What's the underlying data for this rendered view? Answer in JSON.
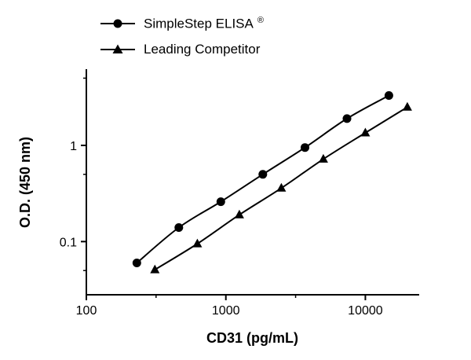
{
  "figure": {
    "background_color": "#ffffff",
    "line_color": "#000000",
    "text_color": "#000000"
  },
  "chart_data": {
    "type": "line",
    "title": "",
    "xlabel": "CD31 (pg/mL)",
    "ylabel": "O.D. (450 nm)",
    "x_scale": "log",
    "y_scale": "log",
    "xlim": [
      100,
      24000
    ],
    "ylim": [
      0.028,
      6.2
    ],
    "grid": false,
    "legend_position": "top-left",
    "x_ticks": [
      {
        "value": 100,
        "label": "100"
      },
      {
        "value": 1000,
        "label": "1000"
      },
      {
        "value": 10000,
        "label": "10000"
      }
    ],
    "x_minor_ticks": [
      316,
      3162
    ],
    "y_ticks": [
      {
        "value": 1,
        "label": "1"
      },
      {
        "value": 0.1,
        "label": "0.1"
      }
    ],
    "y_minor_ticks": [
      0.05,
      0.5,
      5
    ],
    "series": [
      {
        "name": "SimpleStep ELISA",
        "name_suffix": "®",
        "marker": "circle",
        "color": "#000000",
        "x": [
          230,
          460,
          920,
          1840,
          3690,
          7380,
          14750
        ],
        "y": [
          0.06,
          0.14,
          0.26,
          0.5,
          0.95,
          1.9,
          3.3
        ]
      },
      {
        "name": "Leading Competitor",
        "name_suffix": "",
        "marker": "triangle",
        "color": "#000000",
        "x": [
          310,
          625,
          1250,
          2500,
          5000,
          10000,
          20000
        ],
        "y": [
          0.051,
          0.095,
          0.19,
          0.36,
          0.72,
          1.35,
          2.5
        ]
      }
    ]
  }
}
